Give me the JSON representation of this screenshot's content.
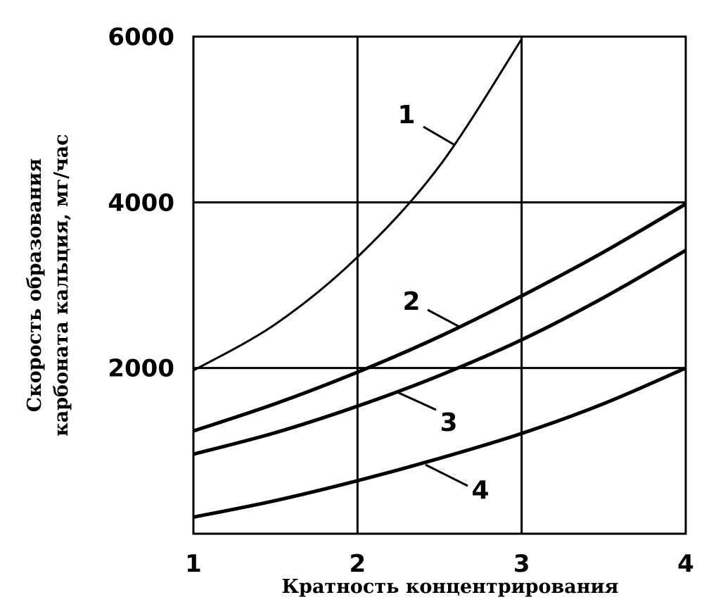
{
  "chart_data": {
    "type": "line",
    "ylabel": [
      "Скорость образования",
      "карбоната кальция, мг/час"
    ],
    "xlabel": "Кратность концентрирования",
    "x": [
      1,
      1.5,
      2,
      2.5,
      3,
      3.5,
      4
    ],
    "series": [
      {
        "name": "1",
        "color": "#000000",
        "values": [
          1970,
          2530,
          3340,
          4440,
          5970,
          null,
          null
        ]
      },
      {
        "name": "2",
        "color": "#000000",
        "values": [
          1240,
          1570,
          1950,
          2380,
          2870,
          3400,
          3980
        ]
      },
      {
        "name": "3",
        "color": "#000000",
        "values": [
          960,
          1220,
          1540,
          1910,
          2340,
          2850,
          3420
        ]
      },
      {
        "name": "4",
        "color": "#000000",
        "values": [
          200,
          400,
          640,
          910,
          1210,
          1570,
          2000
        ]
      }
    ],
    "xlim": [
      1,
      4
    ],
    "xticks": [
      1,
      2,
      3,
      4
    ],
    "ylim": [
      0,
      6000
    ],
    "yticks": [
      2000,
      4000,
      6000
    ],
    "grid": true
  }
}
